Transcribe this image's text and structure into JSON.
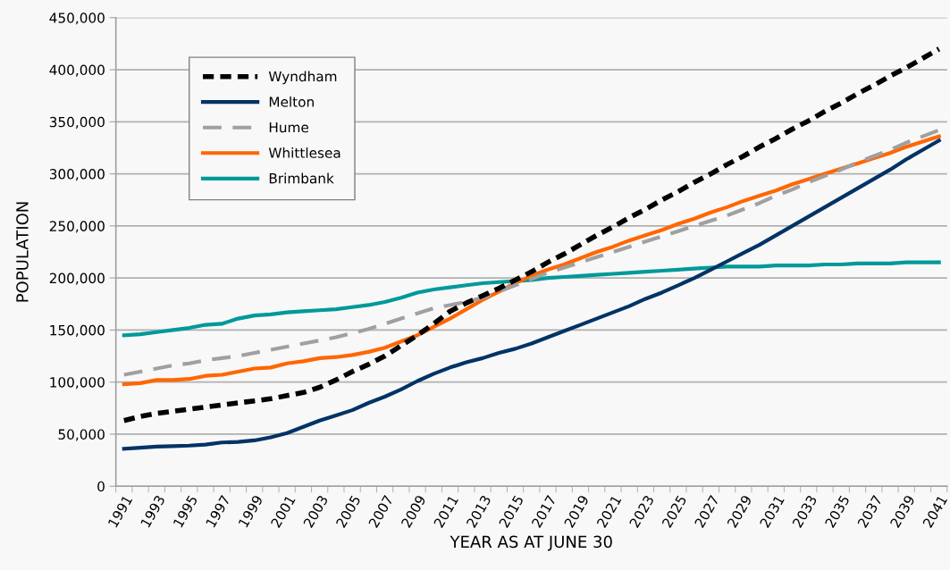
{
  "chart_data": {
    "type": "line",
    "xlabel": "YEAR AS AT JUNE 30",
    "ylabel": "POPULATION",
    "categories": [
      "1991",
      null,
      "1993",
      null,
      "1995",
      null,
      "1997",
      null,
      "1999",
      null,
      "2001",
      null,
      "2003",
      null,
      "2005",
      null,
      "2007",
      null,
      "2009",
      null,
      "2011",
      null,
      "2013",
      null,
      "2015",
      null,
      "2017",
      null,
      "2019",
      null,
      "2021",
      null,
      "2023",
      null,
      "2025",
      null,
      "2027",
      null,
      "2029",
      null,
      "2031",
      null,
      "2033",
      null,
      "2035",
      null,
      "2037",
      null,
      "2039",
      null,
      "2041"
    ],
    "ylim": [
      0,
      450000
    ],
    "yticks": [
      {
        "value": 0,
        "label": "0"
      },
      {
        "value": 50000,
        "label": "50,000"
      },
      {
        "value": 100000,
        "label": "100,000"
      },
      {
        "value": 150000,
        "label": "150,000"
      },
      {
        "value": 200000,
        "label": "200,000"
      },
      {
        "value": 250000,
        "label": "250,000"
      },
      {
        "value": 300000,
        "label": "300,000"
      },
      {
        "value": 350000,
        "label": "350,000"
      },
      {
        "value": 400000,
        "label": "400,000"
      },
      {
        "value": 450000,
        "label": "450,000"
      }
    ],
    "grid": "y",
    "legend": "top left",
    "marker": "none",
    "series": [
      {
        "name": "Wyndham",
        "color": "#000000",
        "line_style": "dotted",
        "values": [
          63000,
          67000,
          70000,
          72000,
          74000,
          76000,
          78000,
          80000,
          82000,
          84000,
          87000,
          90000,
          95000,
          102000,
          110000,
          117000,
          125000,
          135000,
          145000,
          156000,
          168000,
          176000,
          183000,
          190000,
          198000,
          206000,
          215000,
          223000,
          232000,
          241000,
          249000,
          258000,
          266000,
          275000,
          283000,
          292000,
          300000,
          309000,
          317000,
          326000,
          334000,
          343000,
          351000,
          360000,
          368000,
          377000,
          385000,
          394000,
          402000,
          411000,
          420000
        ]
      },
      {
        "name": "Melton",
        "color": "#003366",
        "line_style": "solid",
        "values": [
          36000,
          37000,
          38000,
          38500,
          39000,
          40000,
          42000,
          42500,
          44000,
          47000,
          51000,
          57000,
          63000,
          68000,
          73000,
          80000,
          86000,
          93000,
          101000,
          108000,
          114000,
          119000,
          123000,
          128000,
          132000,
          137000,
          143000,
          149000,
          155000,
          161000,
          167000,
          173000,
          180000,
          186000,
          193000,
          200000,
          208000,
          216000,
          224000,
          232000,
          241000,
          250000,
          259000,
          268000,
          277000,
          286000,
          295000,
          304000,
          314000,
          323000,
          332000
        ]
      },
      {
        "name": "Hume",
        "color": "#a0a0a0",
        "line_style": "dashed",
        "values": [
          107000,
          110000,
          113000,
          116000,
          118000,
          121000,
          123000,
          125000,
          128000,
          131000,
          134000,
          137000,
          140000,
          143000,
          147000,
          151000,
          156000,
          161000,
          166000,
          171000,
          174000,
          177000,
          181000,
          187000,
          193000,
          199000,
          205000,
          210000,
          215000,
          220000,
          225000,
          230000,
          235000,
          240000,
          245000,
          250000,
          255000,
          260000,
          266000,
          272000,
          279000,
          285000,
          292000,
          298000,
          304000,
          311000,
          317000,
          323000,
          330000,
          336000,
          342000
        ]
      },
      {
        "name": "Whittlesea",
        "color": "#ff6600",
        "line_style": "solid",
        "values": [
          98000,
          99000,
          102000,
          102000,
          103000,
          106000,
          107000,
          110000,
          113000,
          114000,
          118000,
          120000,
          123000,
          124000,
          126000,
          129000,
          133000,
          139000,
          145000,
          153000,
          161000,
          170000,
          179000,
          187000,
          195000,
          202000,
          208000,
          213000,
          219000,
          225000,
          230000,
          236000,
          241000,
          246000,
          252000,
          257000,
          263000,
          268000,
          274000,
          279000,
          284000,
          290000,
          295000,
          300000,
          305000,
          310000,
          315000,
          320000,
          326000,
          331000,
          336000
        ]
      },
      {
        "name": "Brimbank",
        "color": "#009999",
        "line_style": "solid",
        "values": [
          145000,
          146000,
          148000,
          150000,
          152000,
          155000,
          156000,
          161000,
          164000,
          165000,
          167000,
          168000,
          169000,
          170000,
          172000,
          174000,
          177000,
          181000,
          186000,
          189000,
          191000,
          193000,
          195000,
          196000,
          197000,
          198000,
          200000,
          201000,
          202000,
          203000,
          204000,
          205000,
          206000,
          207000,
          208000,
          209000,
          210000,
          211000,
          211000,
          211000,
          212000,
          212000,
          212000,
          213000,
          213000,
          214000,
          214000,
          214000,
          215000,
          215000,
          215000
        ]
      }
    ]
  }
}
